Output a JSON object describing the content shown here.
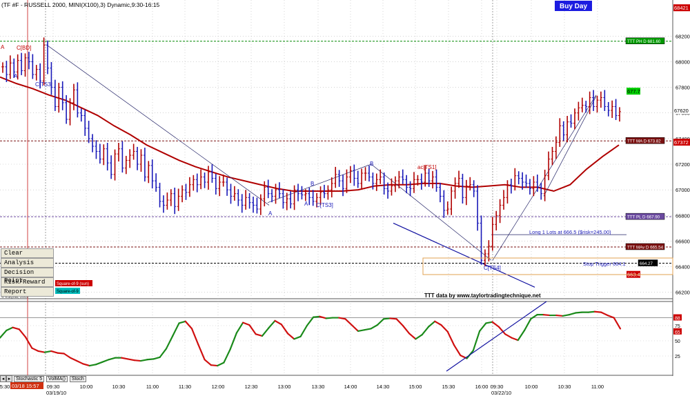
{
  "header": {
    "title": "(TF #F - RUSSELL 2000, MINI(X100),3) Dynamic,9:30-16:15",
    "buy_day": "Buy Day"
  },
  "menu": {
    "items": [
      "Clear",
      "Analysis",
      "Decision Point",
      "Risk/Reward",
      "Report"
    ],
    "badge_red": "Square-of-9 (sun)",
    "badge_cyan": "Square-of-9",
    "copyright": "© eSignal, 2009"
  },
  "tabs": {
    "items": [
      "Stochastic 5",
      "VolMA()",
      "Stoch"
    ]
  },
  "footer": {
    "cursor_date": "03/18 15:57",
    "date_1": "03/19/10",
    "date_2": "03/22/10"
  },
  "colors": {
    "up_bar": "#b00000",
    "down_bar": "#1818b8",
    "ma": "#b00000",
    "stoch_up": "#1a8a1a",
    "stoch_down": "#d01010",
    "trend": "#222266",
    "ph_line": "#008800",
    "ma_line": "#7a1010",
    "pl_line": "#6b4aa0",
    "badge_green": "#00cc00",
    "badge_red": "#cc0000",
    "badge_cyan": "#00bcbc"
  },
  "chart_data": {
    "type": "ohlc",
    "xlabel": "",
    "ylabel": "",
    "ylim": [
      661.5,
      684.6
    ],
    "price_ticks": [
      662.0,
      664.0,
      666.0,
      668.0,
      670.0,
      672.0,
      674.0,
      676.0,
      678.0,
      680.0,
      682.0
    ],
    "price_tick_labels": [
      "66200",
      "66400",
      "66600",
      "66800",
      "67000",
      "67200",
      "67400",
      "67600",
      "67800",
      "68000",
      "68200"
    ],
    "time_labels": [
      "5:30",
      "09:30",
      "10:00",
      "10:30",
      "11:00",
      "11:30",
      "12:00",
      "12:30",
      "13:00",
      "13:30",
      "14:00",
      "14:30",
      "15:00",
      "15:30",
      "16:00",
      "09:30",
      "10:00",
      "10:30",
      "11:00"
    ],
    "bars": {
      "closes": [
        679.6,
        679.0,
        679.9,
        679.2,
        680.1,
        679.3,
        680.3,
        680.0,
        679.0,
        679.4,
        678.5,
        681.3,
        679.5,
        678.0,
        676.5,
        678.0,
        676.8,
        675.5,
        676.8,
        677.8,
        676.0,
        675.8,
        674.8,
        674.0,
        673.4,
        673.0,
        672.4,
        673.2,
        672.1,
        671.2,
        672.8,
        673.2,
        671.7,
        672.3,
        672.7,
        673.0,
        672.0,
        672.7,
        671.0,
        671.9,
        670.7,
        670.2,
        669.1,
        668.8,
        669.2,
        669.7,
        668.7,
        669.5,
        670.0,
        669.8,
        670.4,
        670.8,
        670.4,
        671.0,
        670.6,
        671.4,
        670.9,
        670.1,
        670.6,
        670.6,
        670.0,
        669.5,
        669.7,
        669.2,
        668.8,
        669.4,
        669.0,
        668.8,
        668.5,
        669.3,
        670.2,
        669.7,
        669.5,
        670.0,
        669.7,
        669.0,
        669.3,
        668.9,
        670.0,
        669.7,
        669.6,
        669.7,
        669.4,
        669.1,
        669.4,
        669.8,
        669.7,
        670.0,
        670.5,
        671.2,
        670.7,
        670.1,
        671.0,
        671.5,
        670.9,
        670.5,
        671.3,
        671.3,
        671.0,
        670.5,
        670.8,
        671.0,
        670.1,
        669.9,
        670.3,
        670.7,
        671.0,
        670.8,
        670.2,
        670.1,
        670.8,
        670.8,
        670.6,
        671.3,
        670.7,
        671.0,
        670.2,
        669.5,
        668.4,
        668.5,
        669.9,
        670.5,
        670.9,
        669.4,
        670.3,
        670.4,
        669.9,
        667.4,
        664.5,
        665.0,
        665.6,
        667.3,
        668.0,
        668.8,
        669.4,
        670.4,
        670.3,
        671.1,
        670.9,
        670.6,
        670.5,
        670.1,
        670.6,
        670.2,
        669.7,
        671.1,
        672.4,
        673.0,
        673.7,
        675.0,
        674.3,
        675.3,
        675.2,
        676.0,
        676.4,
        676.6,
        676.5,
        677.2,
        676.5,
        677.0,
        677.2,
        676.5,
        676.2,
        676.5,
        675.8,
        676.1
      ]
    },
    "moving_average": [
      678.8,
      678.3,
      677.9,
      677.4,
      677.0,
      676.4,
      675.8,
      675.0,
      674.3,
      673.5,
      672.9,
      672.3,
      671.8,
      671.4,
      671.0,
      670.7,
      670.4,
      670.1,
      669.9,
      669.9,
      669.9,
      669.9,
      670.0,
      670.3,
      670.4,
      670.4,
      670.5,
      670.5,
      670.3,
      670.2,
      670.3,
      670.4,
      670.2,
      670.2,
      669.9,
      670.4,
      671.6,
      672.6,
      673.5
    ],
    "levels": [
      {
        "label": "TTT PH D 681.60",
        "price": 681.6,
        "style": "ph"
      },
      {
        "label": "TTT MA D 673.82",
        "price": 673.82,
        "style": "ma"
      },
      {
        "label": "TTT PL D 667.90",
        "price": 667.9,
        "style": "pl"
      },
      {
        "label": "TTT MAv D 665.54",
        "price": 665.54,
        "style": "ma"
      },
      {
        "label": "664.27",
        "price": 664.27,
        "style": "black"
      }
    ],
    "last_price_labels": [
      {
        "text": "68421",
        "price": 684.21
      },
      {
        "text": "677.7",
        "price": 677.7
      },
      {
        "text": "67620",
        "price": 676.2
      },
      {
        "text": "67372",
        "price": 673.72
      },
      {
        "text": "663.4",
        "price": 663.4
      }
    ],
    "annotations": {
      "pivots": [
        "A",
        "C[BD]",
        "A",
        "C[TS3]",
        "A",
        "A",
        "B",
        "C[TS3]",
        "B",
        "ac[TS1]",
        "C[TS4]"
      ],
      "long_text": "Long 1 Lots at 666.5 ($risk=245.00)",
      "stop_text": "Stop Trigger 664.1",
      "credit": "TTT data by www.taylortradingtechnique.net"
    },
    "stochastic": {
      "ylim": [
        0,
        100
      ],
      "tick_values": [
        25,
        50,
        75
      ],
      "tick_labels": [
        "25",
        "50",
        "75",
        "88",
        "65"
      ],
      "values": [
        55,
        67,
        72,
        69,
        56,
        38,
        33,
        31,
        33,
        30,
        29,
        22,
        17,
        12,
        9,
        11,
        15,
        19,
        22,
        22,
        20,
        18,
        17,
        19,
        20,
        23,
        37,
        58,
        79,
        82,
        70,
        44,
        19,
        10,
        9,
        14,
        36,
        63,
        80,
        76,
        61,
        58,
        71,
        83,
        77,
        62,
        53,
        57,
        75,
        89,
        90,
        87,
        88,
        88,
        86,
        76,
        66,
        68,
        70,
        76,
        86,
        87,
        86,
        75,
        62,
        53,
        60,
        73,
        82,
        76,
        65,
        43,
        26,
        21,
        34,
        66,
        79,
        81,
        73,
        61,
        55,
        51,
        67,
        86,
        93,
        93,
        92,
        92,
        91,
        93,
        96,
        97,
        97,
        98,
        97,
        92,
        88,
        70
      ]
    }
  }
}
